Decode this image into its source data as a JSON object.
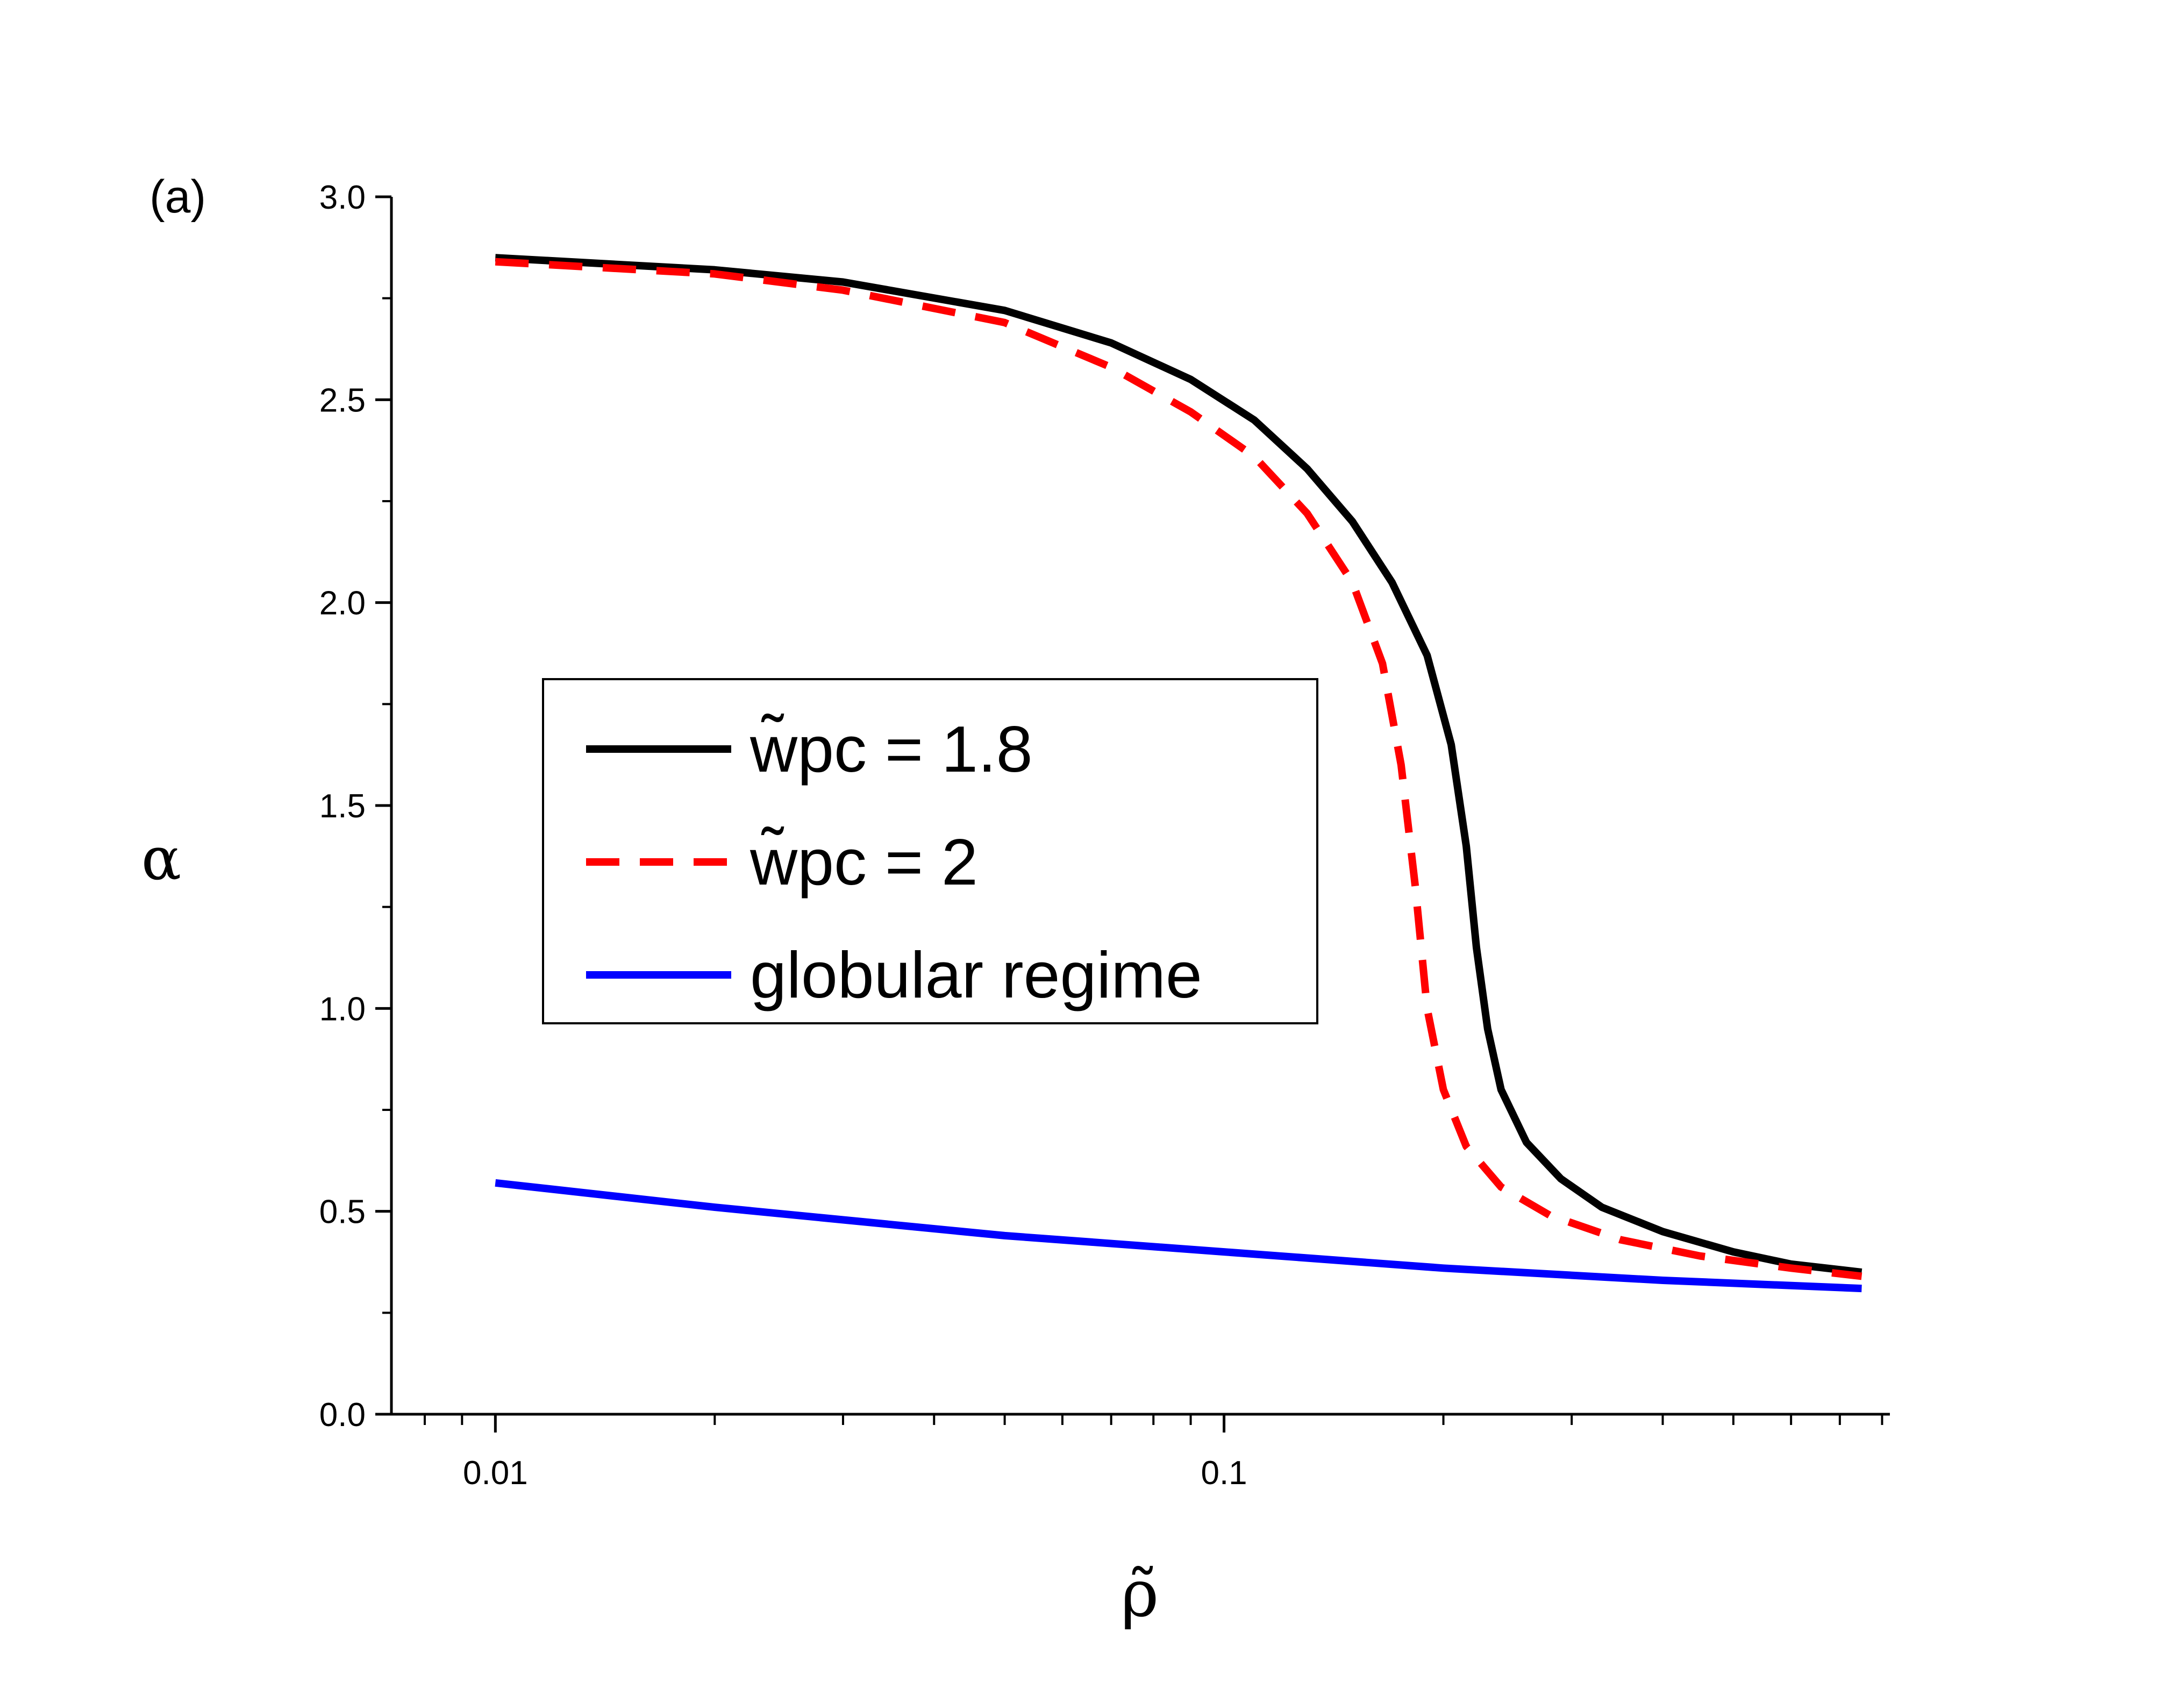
{
  "chart_data": {
    "type": "line",
    "panel_label": "(a)",
    "xlabel": "ρ̃",
    "ylabel": "α",
    "xscale": "log",
    "xlim": [
      0.0072,
      0.82
    ],
    "ylim": [
      0,
      3.0
    ],
    "x_ticks": [
      0.01,
      0.1
    ],
    "x_tick_labels": [
      "0.01",
      "0.1"
    ],
    "y_ticks": [
      0,
      0.5,
      1.0,
      1.5,
      2.0,
      2.5,
      3.0
    ],
    "y_tick_labels": [
      "0.0",
      "0.5",
      "1.0",
      "1.5",
      "2.0",
      "2.5",
      "3.0"
    ],
    "grid": false,
    "legend_position": "center-left",
    "series": [
      {
        "name": "w̃pc = 1.8",
        "color": "#000000",
        "style": "solid",
        "points": [
          [
            0.01,
            2.85
          ],
          [
            0.02,
            2.82
          ],
          [
            0.03,
            2.79
          ],
          [
            0.05,
            2.72
          ],
          [
            0.07,
            2.64
          ],
          [
            0.09,
            2.55
          ],
          [
            0.11,
            2.45
          ],
          [
            0.13,
            2.33
          ],
          [
            0.15,
            2.2
          ],
          [
            0.17,
            2.05
          ],
          [
            0.19,
            1.87
          ],
          [
            0.205,
            1.65
          ],
          [
            0.215,
            1.4
          ],
          [
            0.222,
            1.15
          ],
          [
            0.23,
            0.95
          ],
          [
            0.24,
            0.8
          ],
          [
            0.26,
            0.67
          ],
          [
            0.29,
            0.58
          ],
          [
            0.33,
            0.51
          ],
          [
            0.4,
            0.45
          ],
          [
            0.5,
            0.4
          ],
          [
            0.6,
            0.37
          ],
          [
            0.75,
            0.35
          ]
        ]
      },
      {
        "name": "w̃pc = 2",
        "color": "#ff0000",
        "style": "dashed",
        "points": [
          [
            0.01,
            2.84
          ],
          [
            0.02,
            2.81
          ],
          [
            0.03,
            2.77
          ],
          [
            0.05,
            2.69
          ],
          [
            0.07,
            2.58
          ],
          [
            0.09,
            2.47
          ],
          [
            0.11,
            2.36
          ],
          [
            0.13,
            2.22
          ],
          [
            0.15,
            2.05
          ],
          [
            0.165,
            1.85
          ],
          [
            0.175,
            1.6
          ],
          [
            0.183,
            1.3
          ],
          [
            0.19,
            1.0
          ],
          [
            0.2,
            0.8
          ],
          [
            0.215,
            0.66
          ],
          [
            0.24,
            0.56
          ],
          [
            0.28,
            0.49
          ],
          [
            0.35,
            0.43
          ],
          [
            0.45,
            0.39
          ],
          [
            0.6,
            0.36
          ],
          [
            0.75,
            0.34
          ]
        ]
      },
      {
        "name": "globular regime",
        "color": "#0000ff",
        "style": "solid",
        "points": [
          [
            0.01,
            0.57
          ],
          [
            0.02,
            0.51
          ],
          [
            0.05,
            0.44
          ],
          [
            0.1,
            0.4
          ],
          [
            0.2,
            0.36
          ],
          [
            0.4,
            0.33
          ],
          [
            0.75,
            0.31
          ]
        ]
      }
    ]
  }
}
